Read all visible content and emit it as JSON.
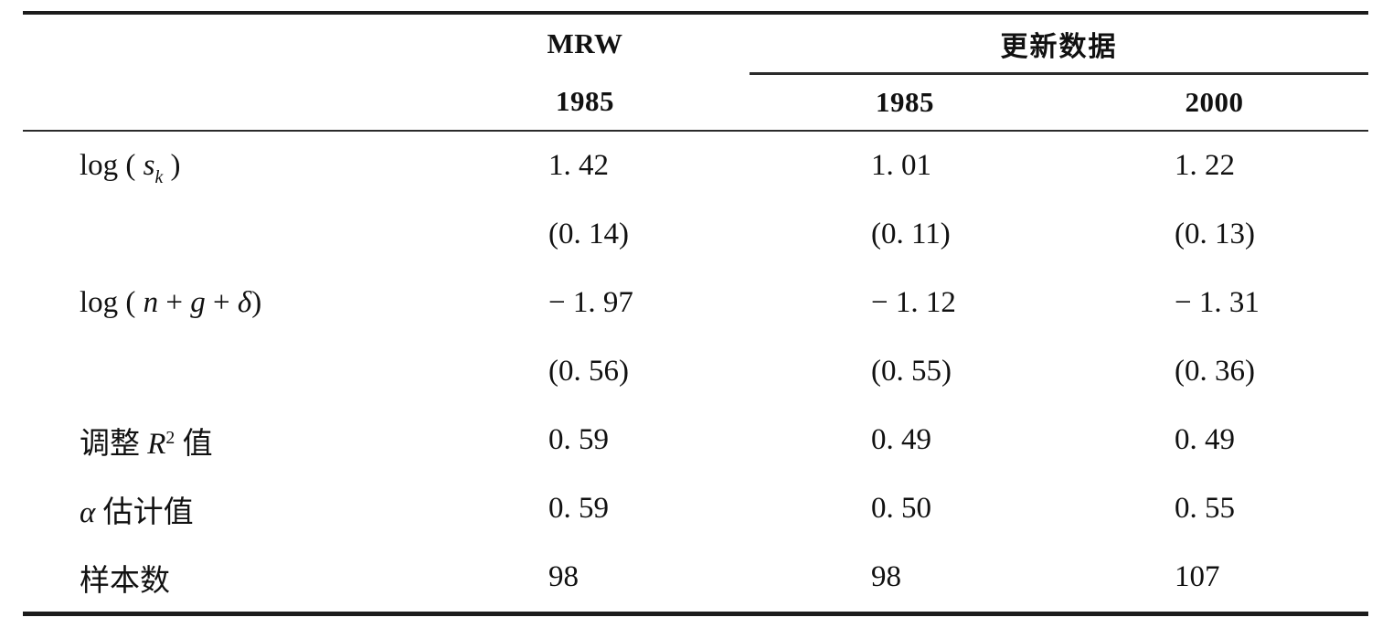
{
  "page": {
    "background_color": "#ffffff",
    "text_color": "#111111",
    "rule_color": "#1c1c1c"
  },
  "table": {
    "header": {
      "mrw_label": "MRW",
      "mrw_year": "1985",
      "updated_group_label": "更新数据",
      "updated_years": [
        "1985",
        "2000"
      ]
    },
    "columns": [
      "",
      "MRW 1985",
      "更新数据 1985",
      "更新数据 2000"
    ],
    "rows": [
      {
        "name": "log-sk-coefficient",
        "label_plain": "log ( s_k )",
        "label_segments": [
          {
            "t": "p",
            "s": "log ( "
          },
          {
            "t": "i",
            "s": "s"
          },
          {
            "t": "sub",
            "s": "k"
          },
          {
            "t": "p",
            "s": " )"
          }
        ],
        "values": [
          "1. 42",
          "1. 01",
          "1. 22"
        ]
      },
      {
        "name": "log-sk-stderr",
        "label_plain": "",
        "label_segments": [],
        "values": [
          "(0. 14)",
          "(0. 11)",
          "(0. 13)"
        ]
      },
      {
        "name": "log-ngd-coefficient",
        "label_plain": "log ( n + g + δ)",
        "label_segments": [
          {
            "t": "p",
            "s": "log ( "
          },
          {
            "t": "i",
            "s": "n"
          },
          {
            "t": "p",
            "s": " + "
          },
          {
            "t": "i",
            "s": "g"
          },
          {
            "t": "p",
            "s": " + "
          },
          {
            "t": "i",
            "s": "δ"
          },
          {
            "t": "p",
            "s": ")"
          }
        ],
        "values": [
          "− 1. 97",
          "− 1. 12",
          "− 1. 31"
        ]
      },
      {
        "name": "log-ngd-stderr",
        "label_plain": "",
        "label_segments": [],
        "values": [
          "(0. 56)",
          "(0. 55)",
          "(0. 36)"
        ]
      },
      {
        "name": "adjusted-r-squared",
        "label_plain": "调整 R² 值",
        "label_segments": [
          {
            "t": "p",
            "s": "调整 "
          },
          {
            "t": "i",
            "s": "R"
          },
          {
            "t": "sup",
            "s": "2"
          },
          {
            "t": "p",
            "s": " 值"
          }
        ],
        "values": [
          "0. 59",
          "0. 49",
          "0. 49"
        ]
      },
      {
        "name": "alpha-estimate",
        "label_plain": "α 估计值",
        "label_segments": [
          {
            "t": "i",
            "s": "α"
          },
          {
            "t": "p",
            "s": " 估计值"
          }
        ],
        "values": [
          "0. 59",
          "0. 50",
          "0. 55"
        ]
      },
      {
        "name": "sample-size",
        "label_plain": "样本数",
        "label_segments": [
          {
            "t": "p",
            "s": "样本数"
          }
        ],
        "values": [
          "98",
          "98",
          "107"
        ]
      }
    ]
  }
}
